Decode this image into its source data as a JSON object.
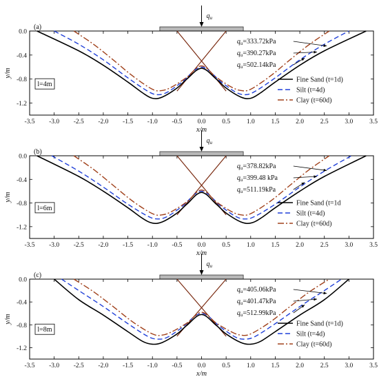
{
  "chart_data": [
    {
      "type": "line",
      "panel_label": "(a)",
      "load_label": "q",
      "load_sub": "u",
      "box_label": "l=4m",
      "xlabel": "x/m",
      "ylabel": "y/m",
      "xlim": [
        -3.5,
        3.5
      ],
      "ylim": [
        -1.4,
        0.0
      ],
      "xticks": [
        "-3.5",
        "-3.0",
        "-2.5",
        "-2.0",
        "-1.5",
        "-1.0",
        "-0.5",
        "0.0",
        "0.5",
        "1.0",
        "1.5",
        "2.0",
        "2.5",
        "3.0",
        "3.5"
      ],
      "yticks": [
        "0.0",
        "-0.4",
        "-0.8",
        "-1.2"
      ],
      "annotations": [
        {
          "sym": "q",
          "sub": "u",
          "text": "=333.72kPa",
          "target_series": 0
        },
        {
          "sym": "q",
          "sub": "u",
          "text": "=390.27kPa",
          "target_series": 1
        },
        {
          "sym": "q",
          "sub": "u",
          "text": "=502.14kPa",
          "target_series": 2
        }
      ],
      "legend": [
        "Fine Sand (t=1d)",
        "Silt (t=4d)",
        "Clay (t=60d)"
      ],
      "series": [
        {
          "name": "Fine Sand (t=1d)",
          "style": "solid",
          "color": "#000000",
          "x": [
            -3.35,
            -2.5,
            -2.0,
            -1.5,
            -1.2,
            -1.0,
            -0.8,
            -0.5,
            -0.3,
            0.0,
            0.3,
            0.5,
            0.8,
            1.0,
            1.2,
            1.5,
            2.0,
            2.5,
            3.35
          ],
          "y": [
            0.0,
            -0.33,
            -0.57,
            -0.85,
            -1.03,
            -1.12,
            -1.1,
            -0.95,
            -0.8,
            -0.62,
            -0.8,
            -0.95,
            -1.1,
            -1.12,
            -1.03,
            -0.85,
            -0.57,
            -0.33,
            0.0
          ]
        },
        {
          "name": "Silt (t=4d)",
          "style": "dashed",
          "color": "#1f3fd8",
          "x": [
            -3.0,
            -2.5,
            -2.0,
            -1.5,
            -1.1,
            -0.9,
            -0.7,
            -0.4,
            0.0,
            0.4,
            0.7,
            0.9,
            1.1,
            1.5,
            2.0,
            2.5,
            3.0
          ],
          "y": [
            0.0,
            -0.22,
            -0.48,
            -0.78,
            -1.0,
            -1.06,
            -1.02,
            -0.85,
            -0.6,
            -0.85,
            -1.02,
            -1.06,
            -1.0,
            -0.78,
            -0.48,
            -0.22,
            0.0
          ]
        },
        {
          "name": "Clay (t=60d)",
          "style": "dashdot",
          "color": "#a0401a",
          "x": [
            -2.6,
            -2.2,
            -1.8,
            -1.4,
            -1.0,
            -0.8,
            -0.6,
            -0.3,
            0.0,
            0.3,
            0.6,
            0.8,
            1.0,
            1.4,
            1.8,
            2.2,
            2.6
          ],
          "y": [
            0.0,
            -0.22,
            -0.48,
            -0.75,
            -0.97,
            -0.99,
            -0.93,
            -0.77,
            -0.58,
            -0.77,
            -0.93,
            -0.99,
            -0.97,
            -0.75,
            -0.48,
            -0.22,
            0.0
          ]
        }
      ],
      "crossing_lines": [
        {
          "x": [
            -0.5,
            0.5
          ],
          "y": [
            0.0,
            -1.0
          ]
        },
        {
          "x": [
            0.5,
            -0.5
          ],
          "y": [
            0.0,
            -1.0
          ]
        }
      ],
      "footing": {
        "x": [
          -0.85,
          0.85
        ]
      }
    },
    {
      "type": "line",
      "panel_label": "(b)",
      "load_label": "q",
      "load_sub": "u",
      "box_label": "l=6m",
      "xlabel": "x/m",
      "ylabel": "y/m",
      "xlim": [
        -3.5,
        3.5
      ],
      "ylim": [
        -1.4,
        0.0
      ],
      "xticks": [
        "-3.5",
        "-3.0",
        "-2.5",
        "-2.0",
        "-1.5",
        "-1.0",
        "-0.5",
        "0.0",
        "0.5",
        "1.0",
        "1.5",
        "2.0",
        "2.5",
        "3.0",
        "3.5"
      ],
      "yticks": [
        "0.0",
        "-0.4",
        "-0.8",
        "-1.2"
      ],
      "annotations": [
        {
          "sym": "q",
          "sub": "u",
          "text": "=378.82kPa",
          "target_series": 0
        },
        {
          "sym": "q",
          "sub": "u",
          "text": "=399.48 kPa",
          "target_series": 1
        },
        {
          "sym": "q",
          "sub": "u",
          "text": "=511.19kPa",
          "target_series": 2
        }
      ],
      "legend": [
        "Fine Sand (t=1d",
        "Silt (t=4d)",
        "Clay (t=60d)"
      ],
      "series": [
        {
          "name": "Fine Sand (t=1d",
          "style": "solid",
          "color": "#000000",
          "x": [
            -3.35,
            -2.5,
            -2.0,
            -1.5,
            -1.2,
            -1.0,
            -0.8,
            -0.5,
            -0.3,
            0.0,
            0.3,
            0.5,
            0.8,
            1.0,
            1.2,
            1.5,
            2.0,
            2.5,
            3.35
          ],
          "y": [
            0.0,
            -0.35,
            -0.6,
            -0.88,
            -1.06,
            -1.14,
            -1.12,
            -0.97,
            -0.82,
            -0.62,
            -0.82,
            -0.97,
            -1.12,
            -1.14,
            -1.06,
            -0.88,
            -0.6,
            -0.35,
            0.0
          ]
        },
        {
          "name": "Silt (t=4d)",
          "style": "dashed",
          "color": "#1f3fd8",
          "x": [
            -3.05,
            -2.5,
            -2.0,
            -1.5,
            -1.1,
            -0.9,
            -0.7,
            -0.4,
            0.0,
            0.4,
            0.7,
            0.9,
            1.1,
            1.5,
            2.0,
            2.5,
            3.05
          ],
          "y": [
            0.0,
            -0.26,
            -0.53,
            -0.82,
            -1.02,
            -1.07,
            -1.03,
            -0.86,
            -0.6,
            -0.86,
            -1.03,
            -1.07,
            -1.02,
            -0.82,
            -0.53,
            -0.26,
            0.0
          ]
        },
        {
          "name": "Clay (t=60d)",
          "style": "dashdot",
          "color": "#a0401a",
          "x": [
            -2.6,
            -2.2,
            -1.8,
            -1.4,
            -1.0,
            -0.8,
            -0.6,
            -0.3,
            0.0,
            0.3,
            0.6,
            0.8,
            1.0,
            1.4,
            1.8,
            2.2,
            2.6
          ],
          "y": [
            0.0,
            -0.23,
            -0.5,
            -0.77,
            -0.98,
            -1.0,
            -0.94,
            -0.78,
            -0.58,
            -0.78,
            -0.94,
            -1.0,
            -0.98,
            -0.77,
            -0.5,
            -0.23,
            0.0
          ]
        }
      ],
      "crossing_lines": [
        {
          "x": [
            -0.5,
            0.5
          ],
          "y": [
            0.0,
            -1.0
          ]
        },
        {
          "x": [
            0.5,
            -0.5
          ],
          "y": [
            0.0,
            -1.0
          ]
        }
      ],
      "footing": {
        "x": [
          -0.85,
          0.85
        ]
      }
    },
    {
      "type": "line",
      "panel_label": "(c)",
      "load_label": "q",
      "load_sub": "u",
      "box_label": "l=8m",
      "xlabel": "x/m",
      "ylabel": "y/m",
      "xlim": [
        -3.5,
        3.5
      ],
      "ylim": [
        -1.4,
        0.0
      ],
      "xticks": [
        "-3.5",
        "-3.0",
        "-2.5",
        "-2.0",
        "-1.5",
        "-1.0",
        "-0.5",
        "0.0",
        "0.5",
        "1.0",
        "1.5",
        "2.0",
        "2.5",
        "3.0",
        "3.5"
      ],
      "yticks": [
        "0.0",
        "-0.4",
        "-0.8",
        "-1.2"
      ],
      "annotations": [
        {
          "sym": "q",
          "sub": "u",
          "text": "=405.06kPa",
          "target_series": 0
        },
        {
          "sym": "q",
          "sub": "u",
          "text": "=401.47kPa",
          "target_series": 1
        },
        {
          "sym": "q",
          "sub": "u",
          "text": "=512.99kPa",
          "target_series": 2
        }
      ],
      "legend": [
        "Fine Sand (t=1d)",
        "Silt (t=4d)",
        "Clay (t=60d)"
      ],
      "series": [
        {
          "name": "Fine Sand (t=1d)",
          "style": "solid",
          "color": "#000000",
          "x": [
            -3.0,
            -2.5,
            -2.0,
            -1.5,
            -1.2,
            -1.0,
            -0.8,
            -0.5,
            -0.3,
            0.0,
            0.3,
            0.5,
            0.8,
            1.0,
            1.2,
            1.5,
            2.0,
            2.5,
            3.0
          ],
          "y": [
            0.0,
            -0.36,
            -0.63,
            -0.92,
            -1.09,
            -1.14,
            -1.11,
            -0.96,
            -0.81,
            -0.62,
            -0.81,
            -0.96,
            -1.11,
            -1.14,
            -1.09,
            -0.92,
            -0.63,
            -0.36,
            0.0
          ]
        },
        {
          "name": "Silt (t=4d)",
          "style": "dashed",
          "color": "#1f3fd8",
          "x": [
            -2.85,
            -2.5,
            -2.0,
            -1.5,
            -1.1,
            -0.9,
            -0.7,
            -0.4,
            0.0,
            0.4,
            0.7,
            0.9,
            1.1,
            1.5,
            2.0,
            2.5,
            2.85
          ],
          "y": [
            0.0,
            -0.2,
            -0.48,
            -0.78,
            -1.0,
            -1.05,
            -1.02,
            -0.85,
            -0.6,
            -0.85,
            -1.02,
            -1.05,
            -1.0,
            -0.78,
            -0.48,
            -0.2,
            0.0
          ]
        },
        {
          "name": "Clay (t=60d)",
          "style": "dashdot",
          "color": "#a0401a",
          "x": [
            -2.6,
            -2.2,
            -1.8,
            -1.4,
            -1.0,
            -0.8,
            -0.6,
            -0.3,
            0.0,
            0.3,
            0.6,
            0.8,
            1.0,
            1.4,
            1.8,
            2.2,
            2.6
          ],
          "y": [
            0.0,
            -0.22,
            -0.48,
            -0.75,
            -0.96,
            -0.98,
            -0.92,
            -0.77,
            -0.58,
            -0.77,
            -0.92,
            -0.98,
            -0.96,
            -0.75,
            -0.48,
            -0.22,
            0.0
          ]
        }
      ],
      "crossing_lines": [
        {
          "x": [
            -0.5,
            0.5
          ],
          "y": [
            0.0,
            -1.0
          ]
        },
        {
          "x": [
            0.5,
            -0.5
          ],
          "y": [
            0.0,
            -1.0
          ]
        }
      ],
      "footing": {
        "x": [
          -0.85,
          0.85
        ]
      }
    }
  ]
}
